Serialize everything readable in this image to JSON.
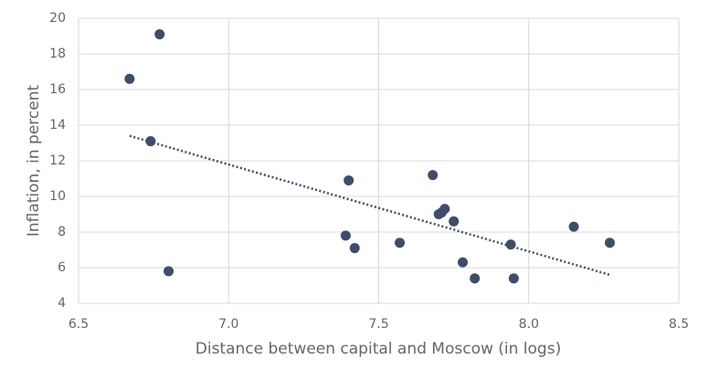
{
  "chart_data": {
    "type": "scatter",
    "x_label": "Distance between capital and Moscow (in logs)",
    "y_label": "Inflation, in percent",
    "x": [
      6.67,
      6.77,
      6.74,
      6.8,
      7.4,
      7.39,
      7.42,
      7.57,
      7.68,
      7.7,
      7.71,
      7.72,
      7.75,
      7.78,
      7.82,
      7.94,
      7.95,
      8.15,
      8.27
    ],
    "values": [
      16.6,
      19.1,
      13.1,
      5.8,
      10.9,
      7.8,
      7.1,
      7.4,
      11.2,
      9.0,
      9.1,
      9.3,
      8.6,
      6.3,
      5.4,
      7.3,
      5.4,
      8.3,
      7.4
    ],
    "color": "#3e4d69",
    "trendline": {
      "x": [
        6.67,
        8.27
      ],
      "y": [
        13.4,
        5.6
      ],
      "color": "#3e4d69"
    },
    "xlim": [
      6.5,
      8.5
    ],
    "xticks": [
      6.5,
      {
        "value": 7,
        "label": "7.0"
      },
      7.5,
      {
        "value": 8,
        "label": "8.0"
      },
      8.5
    ],
    "ylim": [
      4,
      20
    ],
    "yticks": [
      4,
      6,
      8,
      10,
      12,
      14,
      16,
      18,
      20
    ],
    "grid": true
  }
}
